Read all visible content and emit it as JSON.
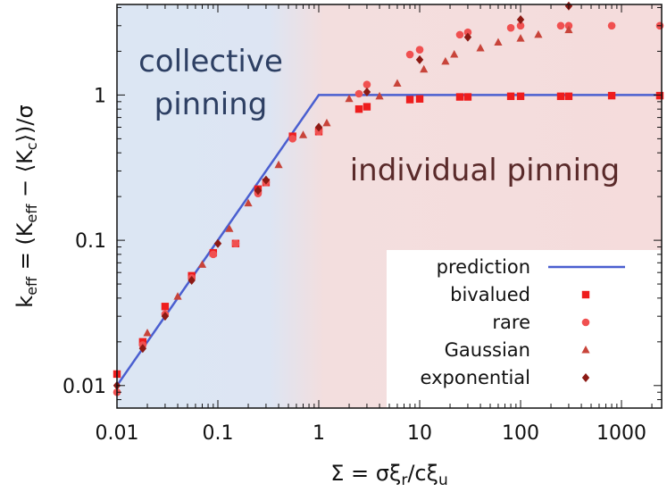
{
  "chart_data": {
    "type": "scatter",
    "xscale": "log",
    "yscale": "log",
    "xlim": [
      0.01,
      2500
    ],
    "ylim": [
      0.007,
      4.2
    ],
    "xlabel": "Σ = σξ_r / cξ_u",
    "ylabel": "k_eff = (K_eff − ⟨K_c⟩)/σ",
    "xticks": [
      {
        "value": 0.01,
        "label": "0.01"
      },
      {
        "value": 0.1,
        "label": "0.1"
      },
      {
        "value": 1,
        "label": "1"
      },
      {
        "value": 10,
        "label": "10"
      },
      {
        "value": 100,
        "label": "100"
      },
      {
        "value": 1000,
        "label": "1000"
      }
    ],
    "yticks": [
      {
        "value": 0.01,
        "label": "0.01"
      },
      {
        "value": 0.1,
        "label": "0.1"
      },
      {
        "value": 1,
        "label": "1"
      }
    ],
    "regions": [
      {
        "label_lines": [
          "collective",
          "pinning"
        ],
        "color": "#dfe7f4",
        "text_color": "#2d3f63"
      },
      {
        "label_lines": [
          "individual pinning"
        ],
        "color": "#f5dede",
        "text_color": "#5a2a2a"
      }
    ],
    "legend_position": "bottom-right",
    "series": [
      {
        "name": "prediction",
        "kind": "line",
        "color": "#4a5fd0",
        "x": [
          0.01,
          1,
          2500
        ],
        "y": [
          0.01,
          1,
          1
        ]
      },
      {
        "name": "bivalued",
        "kind": "square",
        "color": "#ee1d1d",
        "x": [
          0.01,
          0.018,
          0.03,
          0.055,
          0.09,
          0.15,
          0.25,
          0.3,
          0.55,
          1,
          2.5,
          3,
          8,
          10,
          25,
          30,
          80,
          100,
          250,
          300,
          800,
          2400
        ],
        "y": [
          0.012,
          0.02,
          0.035,
          0.057,
          0.082,
          0.095,
          0.225,
          0.25,
          0.52,
          0.56,
          0.8,
          0.83,
          0.93,
          0.94,
          0.97,
          0.97,
          0.98,
          0.98,
          0.98,
          0.98,
          0.99,
          0.99
        ]
      },
      {
        "name": "rare",
        "kind": "circle",
        "color": "#f05050",
        "x": [
          0.01,
          0.018,
          0.03,
          0.055,
          0.09,
          0.15,
          0.25,
          0.3,
          0.55,
          1,
          2.5,
          3,
          8,
          10,
          25,
          30,
          80,
          100,
          250,
          300,
          800,
          2400
        ],
        "y": [
          0.009,
          0.019,
          0.031,
          0.055,
          0.08,
          0.095,
          0.21,
          0.25,
          0.5,
          0.56,
          1.02,
          1.18,
          1.9,
          2.05,
          2.6,
          2.7,
          2.9,
          3.0,
          3.0,
          3.0,
          3.0,
          3.0
        ]
      },
      {
        "name": "Gaussian",
        "kind": "triangle",
        "color": "#c8443a",
        "x": [
          0.02,
          0.04,
          0.07,
          0.13,
          0.2,
          0.4,
          0.7,
          1.2,
          2,
          4,
          6,
          11,
          18,
          22,
          40,
          60,
          100,
          150,
          300
        ],
        "y": [
          0.023,
          0.041,
          0.068,
          0.12,
          0.18,
          0.33,
          0.53,
          0.64,
          0.94,
          0.98,
          1.2,
          1.5,
          1.7,
          1.9,
          2.1,
          2.3,
          2.45,
          2.6,
          2.8
        ]
      },
      {
        "name": "exponential",
        "kind": "diamond",
        "color": "#8c1a14",
        "x": [
          0.01,
          0.018,
          0.03,
          0.055,
          0.1,
          0.25,
          0.3,
          1,
          3,
          10,
          30,
          100,
          300
        ],
        "y": [
          0.01,
          0.018,
          0.03,
          0.053,
          0.095,
          0.22,
          0.26,
          0.6,
          1.05,
          1.75,
          2.5,
          3.3,
          4.1
        ]
      }
    ]
  }
}
